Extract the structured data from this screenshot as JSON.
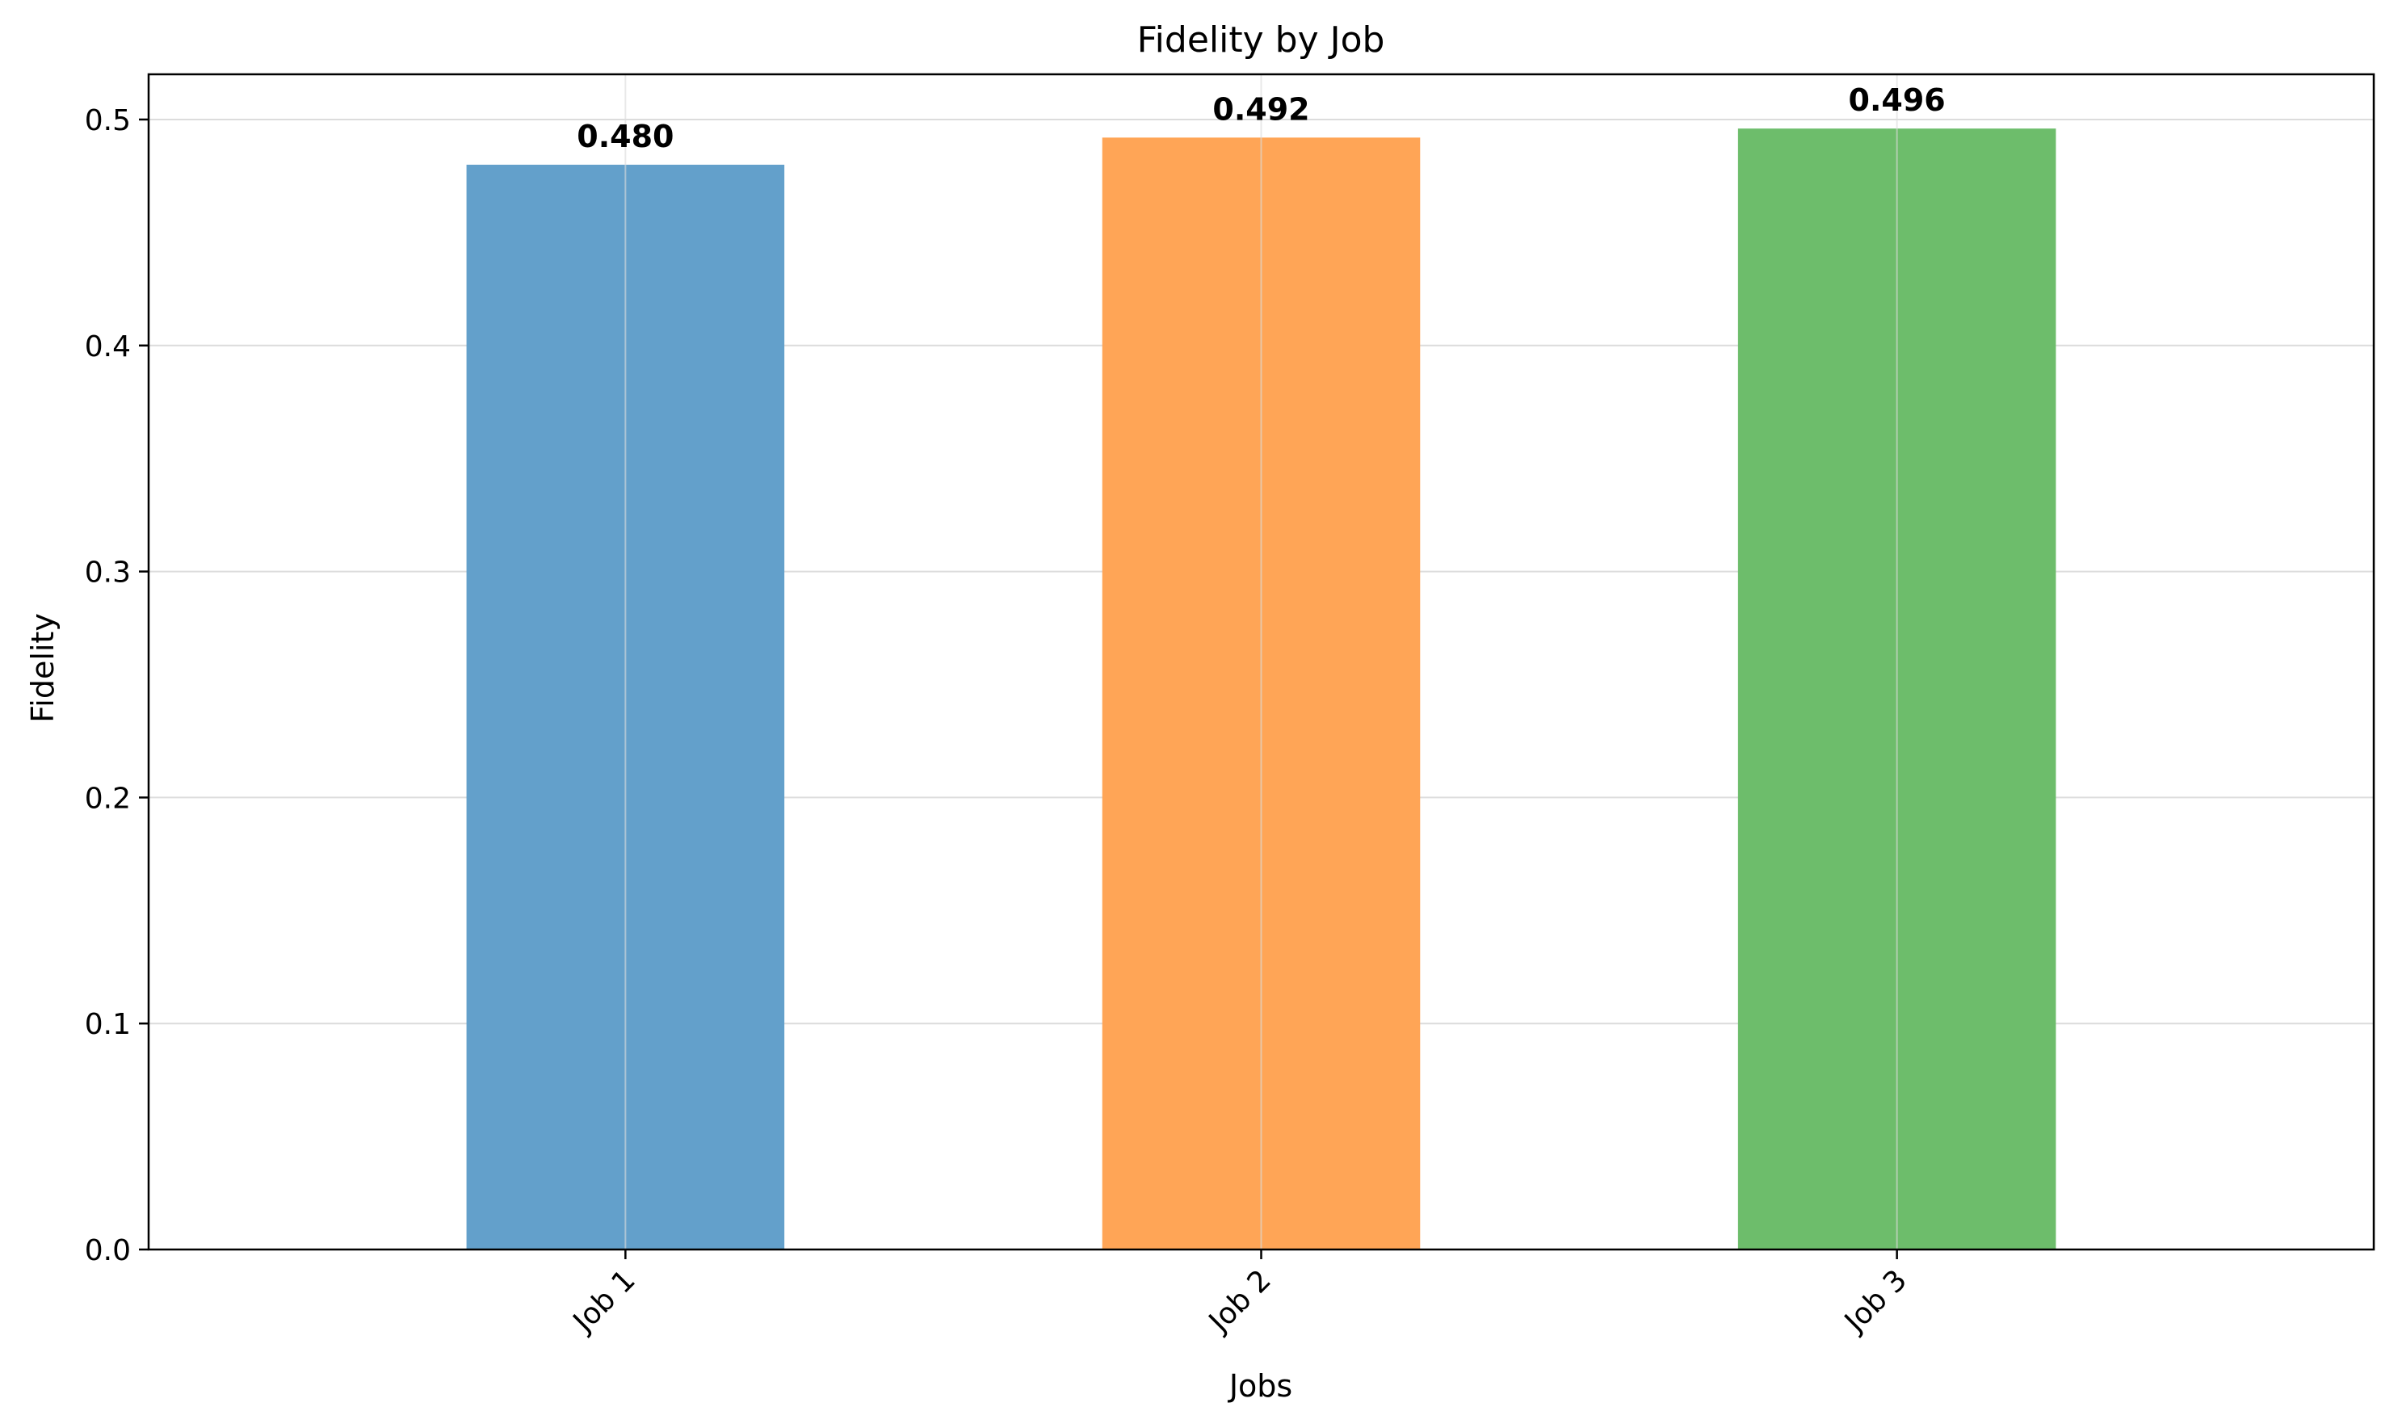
{
  "chart_data": {
    "type": "bar",
    "title": "Fidelity by Job",
    "xlabel": "Jobs",
    "ylabel": "Fidelity",
    "categories": [
      "Job 1",
      "Job 2",
      "Job 3"
    ],
    "values": [
      0.48,
      0.492,
      0.496
    ],
    "data_labels": [
      "0.480",
      "0.492",
      "0.496"
    ],
    "colors": [
      "#63a0cb",
      "#ffa556",
      "#6dbd6b"
    ],
    "ylim": [
      0,
      0.52
    ],
    "yticks": [
      0.0,
      0.1,
      0.2,
      0.3,
      0.4,
      0.5
    ],
    "ytick_labels": [
      "0.0",
      "0.1",
      "0.2",
      "0.3",
      "0.4",
      "0.5"
    ],
    "xtick_rotation": 45,
    "grid": true,
    "legend": "none"
  }
}
